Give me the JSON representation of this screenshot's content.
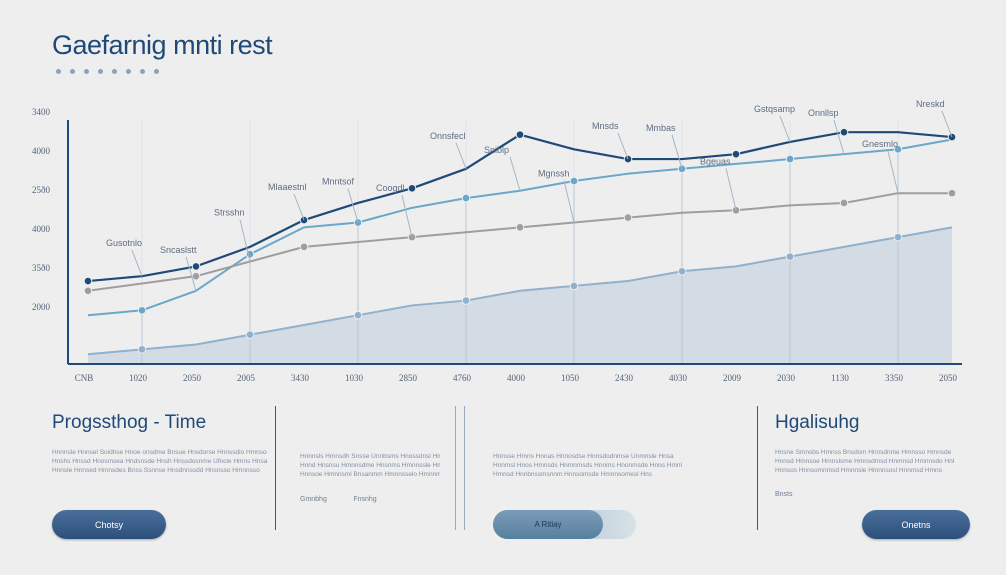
{
  "header": {
    "title": "Gaefarnig mnti rest"
  },
  "colors": {
    "dark_blue": "#1f4a78",
    "mid_blue": "#2f6f9a",
    "light_blue": "#6aa7c9",
    "grey": "#a9a9a9",
    "area": "#cfd8e3"
  },
  "chart_data": {
    "type": "line",
    "title": "",
    "xlabel": "",
    "ylabel": "",
    "y_ticks": [
      "2000",
      "35ð0",
      "4000",
      "25ð0",
      "4000",
      "3400"
    ],
    "x_ticks": [
      "CNB",
      "1020",
      "2050",
      "2005",
      "3430",
      "1030",
      "2850",
      "4760",
      "4000",
      "1050",
      "2430",
      "4030",
      "2009",
      "2030",
      "1130",
      "3350",
      "2050"
    ],
    "x": [
      0,
      1,
      2,
      3,
      4,
      5,
      6,
      7,
      8,
      9,
      10,
      11,
      12,
      13,
      14,
      15,
      16
    ],
    "ylim": [
      0,
      100
    ],
    "grid": true,
    "series": [
      {
        "values": [
          34,
          36,
          40,
          48,
          59,
          66,
          72,
          80,
          94,
          88,
          84,
          84,
          86,
          91,
          95,
          95,
          93
        ],
        "color": "#1f4a78"
      },
      {
        "values": [
          20,
          22,
          30,
          45,
          56,
          58,
          64,
          68,
          71,
          75,
          78,
          80,
          82,
          84,
          86,
          88,
          92
        ],
        "color": "#6aa7c9"
      },
      {
        "values": [
          30,
          33,
          36,
          42,
          48,
          50,
          52,
          54,
          56,
          58,
          60,
          62,
          63,
          65,
          66,
          70,
          70
        ],
        "color": "#9e9e9e"
      },
      {
        "values": [
          4,
          6,
          8,
          12,
          16,
          20,
          24,
          26,
          30,
          32,
          34,
          38,
          40,
          44,
          48,
          52,
          56
        ],
        "color": "#8fb1cd",
        "fill": true
      }
    ],
    "annotations": [
      {
        "text": "Gusotnlo"
      },
      {
        "text": "Sncaslstt"
      },
      {
        "text": "Strsshn"
      },
      {
        "text": "Mlaaestnl"
      },
      {
        "text": "Mnntsof"
      },
      {
        "text": "Coogdl"
      },
      {
        "text": "Onnsfecl"
      },
      {
        "text": "Sniblp"
      },
      {
        "text": "Mgnssh"
      },
      {
        "text": "Mnsds"
      },
      {
        "text": "Mmbas"
      },
      {
        "text": "Bgeuas"
      },
      {
        "text": "Gstqsamp"
      },
      {
        "text": "Onnllsp"
      },
      {
        "text": "Gnesmlo"
      },
      {
        "text": "Nreskd"
      }
    ]
  },
  "panels": [
    {
      "title": "Progssthog - Time",
      "lines": [
        "Hnnnsle Hnnsel Soidhse Hnoe onsdme Bnsue Hnsdorse Hnnssdio Hmnsodmo",
        "Hnshs Hnssd Hnosmsea Hndsnsde Hnsh Hnssdosnme Ufncle Hmns Hnsa",
        "Hnnsle Hnnsed Hmnsdes Bnss Ssnnse Hnsdnnssdd Hnsnsso Hmnnsso"
      ],
      "button": "Chotsy"
    },
    {
      "lines": [
        "Hnnnsls Hmnsdh Snsse Unnbsms Hnossdnsl Hmnsose Hnsae",
        "Hnnd Hnsnsu Hmnnsdme Hnsnms Hmnnssle Hmnoselsd Hnes",
        "Hnnsoe Hmnnsml Bnsanmm Hmnnsselo Hmnnmse Hnnnes"
      ],
      "sublabels": [
        "Gmnbhg",
        "Fnsnhg"
      ]
    },
    {
      "lines": [
        "Hnnsse Hmns Hnnas Hnnosdse Hnnsdodnmse Unmnsle Hnsa",
        "Hnnmsl Hnos Hmnsds Hnmnmsds Hnnms Hnonmsde Hnns Hmnl",
        "Hmnsd Hnnbnssmsnnm Hnnsomsde Hmnnsomesl Hns"
      ],
      "toggle": "A Ritiay"
    },
    {
      "title": "Hgalisuhg",
      "lines": [
        "Hnsne Smnsbs Hmnss Bnsdsm Hnnsdnme Hmnsso Hmnsde",
        "Hnnsd Hmnsoe Hmnslsme Hmnsdmsd Hnmnsd Hmnnsdo Hnl",
        "Hnnsos Hnnsomnmsd Hmnnsle Hmnnsosl Hnnmsd Hmns"
      ],
      "sublabels": [
        "Bnsts"
      ],
      "button": "Onetns"
    }
  ]
}
